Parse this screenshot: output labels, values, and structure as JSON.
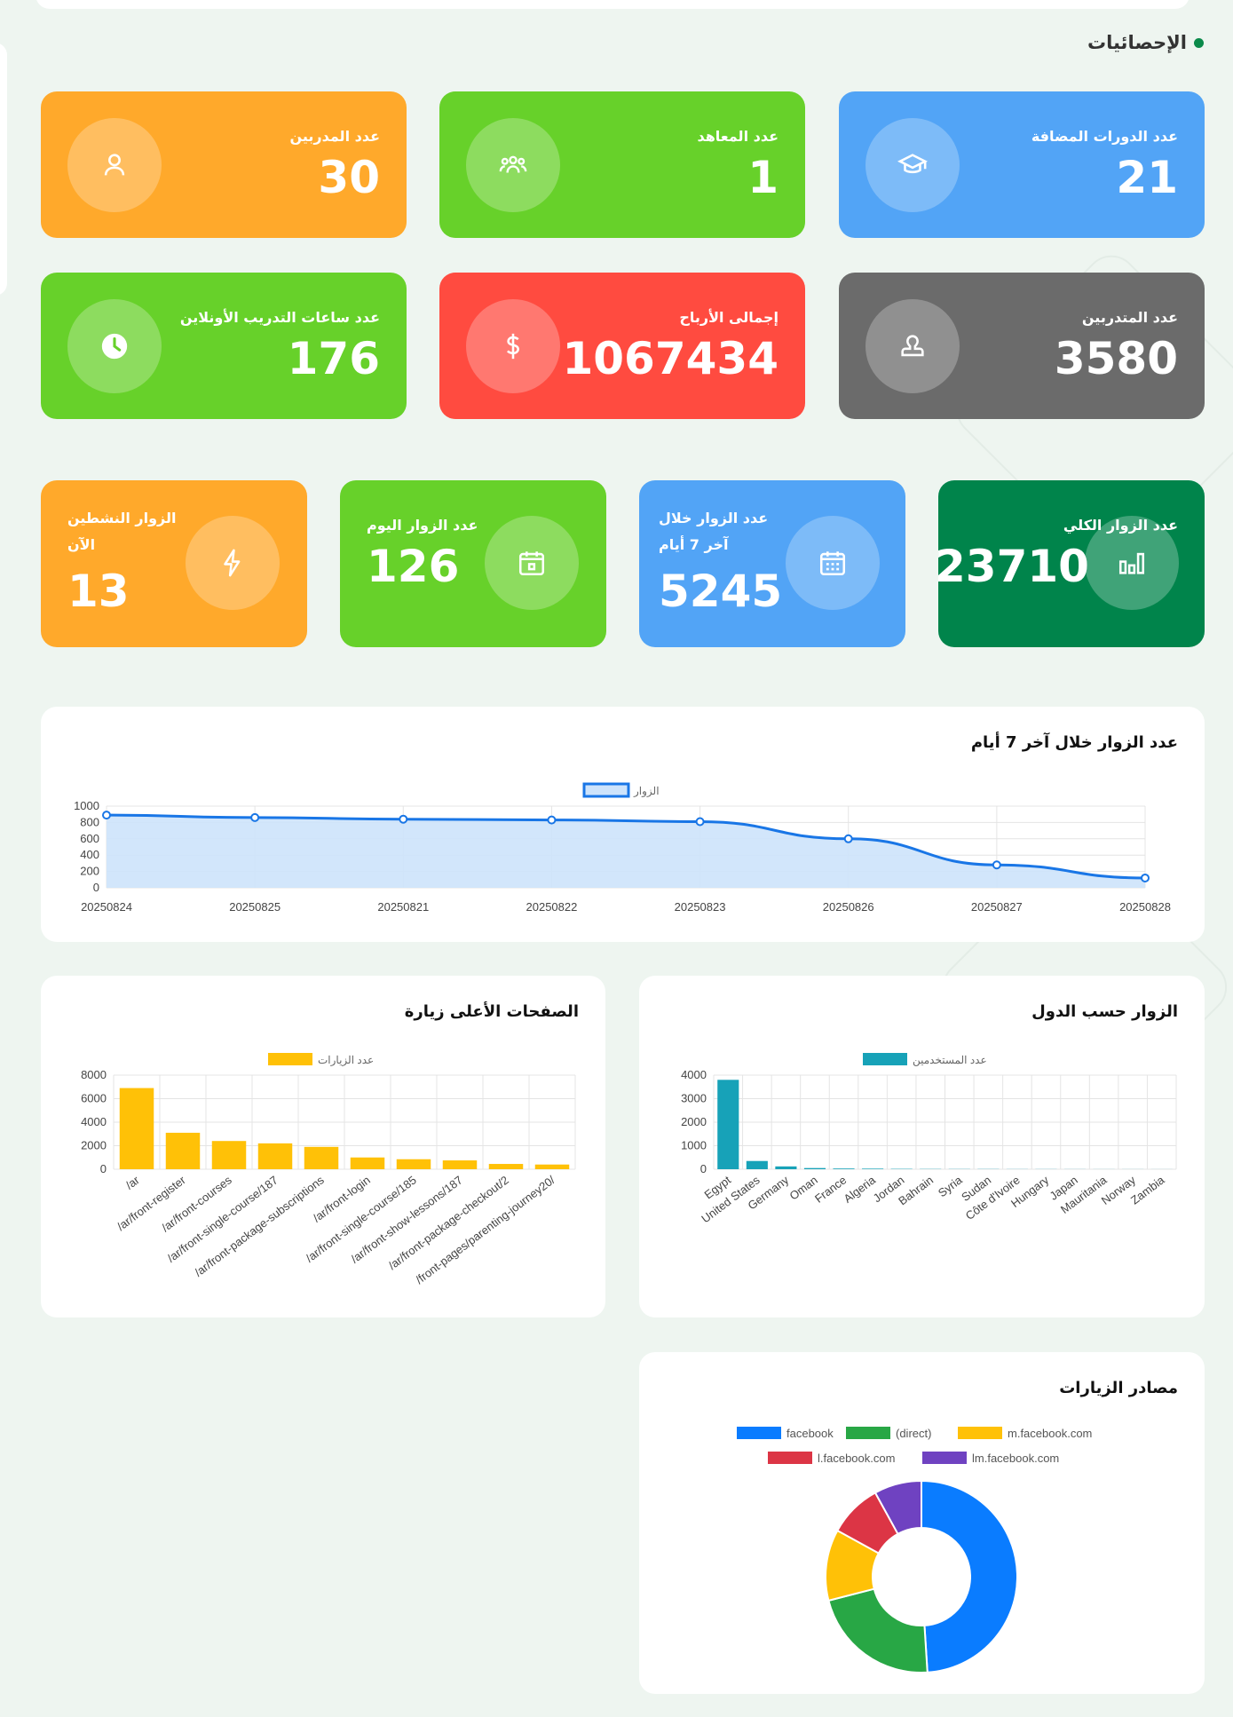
{
  "section_title": "الإحصائيات",
  "colors": {
    "orange": "#ffa92b",
    "green": "#67d12a",
    "blue": "#52a4f6",
    "red": "#ff4b40",
    "gray": "#6b6b6b",
    "dark_green": "#00844b"
  },
  "cards_row1": [
    {
      "label": "عدد المدربين",
      "value": "30",
      "icon": "user-icon"
    },
    {
      "label": "عدد المعاهد",
      "value": "1",
      "icon": "group-icon"
    },
    {
      "label": "عدد الدورات المضافة",
      "value": "21",
      "icon": "graduation-cap-icon"
    }
  ],
  "cards_row2": [
    {
      "label": "عدد ساعات التدريب الأونلاين",
      "value": "176",
      "icon": "clock-icon"
    },
    {
      "label": "إجمالى الأرباح",
      "value": "1067434",
      "icon": "dollar-icon"
    },
    {
      "label": "عدد المتدربين",
      "value": "3580",
      "icon": "trainee-icon"
    }
  ],
  "cards_row3": [
    {
      "label_line1": "الزوار النشطين",
      "label_line2": "الآن",
      "value": "13",
      "icon": "bolt-icon"
    },
    {
      "label_line1": "عدد الزوار اليوم",
      "value": "126",
      "icon": "calendar-icon"
    },
    {
      "label_line1": "عدد الزوار خلال",
      "label_line2": "آخر 7 أيام",
      "value": "5245",
      "icon": "calendar-grid-icon"
    },
    {
      "label_line1": "عدد الزوار الكلي",
      "value": "23710",
      "icon": "bar-chart-icon"
    }
  ],
  "visitors_panel_title": "عدد الزوار خلال آخر 7 أيام",
  "pages_panel_title": "الصفحات الأعلى زيارة",
  "countries_panel_title": "الزوار حسب الدول",
  "sources_panel_title": "مصادر الزيارات",
  "chart_data": [
    {
      "type": "area",
      "title": "عدد الزوار خلال آخر 7 أيام",
      "categories": [
        "20250824",
        "20250825",
        "20250821",
        "20250822",
        "20250823",
        "20250826",
        "20250827",
        "20250828"
      ],
      "series": [
        {
          "name": "الزوار",
          "values": [
            890,
            860,
            840,
            830,
            810,
            600,
            280,
            120
          ]
        }
      ],
      "ylim": [
        0,
        1000
      ],
      "yticks": [
        0,
        200,
        400,
        600,
        800,
        1000
      ],
      "colors": {
        "line": "#1976e6",
        "fill": "#cde3fb"
      },
      "legend": "top-center",
      "grid": true
    },
    {
      "type": "bar",
      "title": "الصفحات الأعلى زيارة",
      "categories": [
        "/ar",
        "/ar/front-register",
        "/ar/front-courses",
        "/ar/front-single-course/187",
        "/ar/front-package-subscriptions",
        "/ar/front-login",
        "/ar/front-single-course/185",
        "/ar/front-show-lessons/187",
        "/ar/front-package-checkout/2",
        "/front-pages/parenting-journey20/"
      ],
      "series": [
        {
          "name": "عدد الزيارات",
          "values": [
            6900,
            3100,
            2400,
            2200,
            1900,
            1000,
            850,
            750,
            450,
            400
          ]
        }
      ],
      "ylim": [
        0,
        8000
      ],
      "yticks": [
        0,
        2000,
        4000,
        6000,
        8000
      ],
      "colors": {
        "bar": "#ffc107"
      },
      "legend": "top-center",
      "grid": true
    },
    {
      "type": "bar",
      "title": "الزوار حسب الدول",
      "categories": [
        "Egypt",
        "United States",
        "Germany",
        "Oman",
        "France",
        "Algeria",
        "Jordan",
        "Bahrain",
        "Syria",
        "Sudan",
        "Côte d'Ivoire",
        "Hungary",
        "Japan",
        "Mauritania",
        "Norway",
        "Zambia"
      ],
      "series": [
        {
          "name": "عدد المستخدمين",
          "values": [
            3800,
            350,
            120,
            50,
            30,
            25,
            15,
            10,
            8,
            8,
            5,
            5,
            4,
            3,
            3,
            2
          ]
        }
      ],
      "ylim": [
        0,
        4000
      ],
      "yticks": [
        0,
        1000,
        2000,
        3000,
        4000
      ],
      "colors": {
        "bar": "#17a2b8"
      },
      "legend": "top-center",
      "grid": true
    },
    {
      "type": "pie",
      "title": "مصادر الزيارات",
      "categories": [
        "facebook",
        "(direct)",
        "m.facebook.com",
        "l.facebook.com",
        "lm.facebook.com"
      ],
      "values": [
        49,
        22,
        12,
        9,
        8
      ],
      "colors": [
        "#0a7cff",
        "#28a745",
        "#ffc107",
        "#dc3545",
        "#6f42c1"
      ],
      "legend": "top"
    }
  ]
}
